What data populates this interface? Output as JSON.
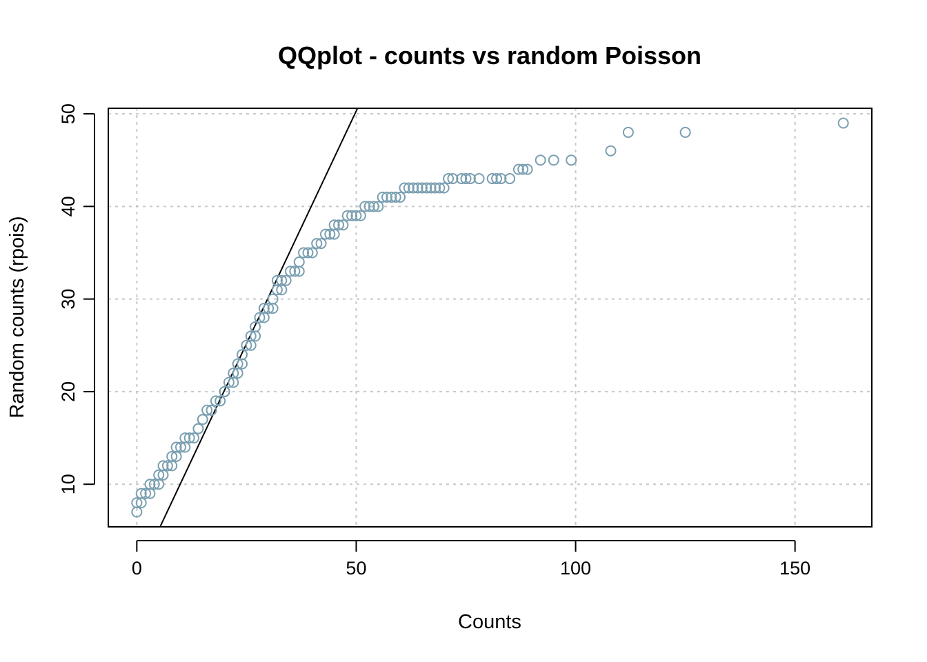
{
  "chart_data": {
    "type": "scatter",
    "title": "QQplot - counts vs random Poisson",
    "xlabel": "Counts",
    "ylabel": "Random counts (rpois)",
    "xlim": [
      -6.5,
      167.5
    ],
    "ylim": [
      5.4,
      50.6
    ],
    "x_ticks": [
      0,
      50,
      100,
      150
    ],
    "y_ticks": [
      10,
      20,
      30,
      40,
      50
    ],
    "grid": true,
    "point_color": "#7a9fb0",
    "reference_line": {
      "x": [
        5.3,
        50.3
      ],
      "y": [
        5.4,
        50.6
      ],
      "color": "#000000"
    },
    "x": [
      0,
      0,
      1,
      1,
      2,
      3,
      3,
      4,
      5,
      5,
      6,
      6,
      7,
      8,
      8,
      9,
      9,
      10,
      11,
      11,
      12,
      13,
      14,
      14,
      15,
      15,
      16,
      17,
      17,
      18,
      19,
      20,
      20,
      21,
      22,
      22,
      23,
      23,
      24,
      24,
      25,
      26,
      26,
      27,
      27,
      28,
      29,
      29,
      30,
      31,
      31,
      32,
      32,
      33,
      33,
      34,
      35,
      36,
      37,
      37,
      38,
      39,
      40,
      41,
      42,
      43,
      44,
      45,
      45,
      46,
      47,
      48,
      49,
      50,
      51,
      52,
      53,
      54,
      55,
      56,
      57,
      58,
      59,
      60,
      61,
      62,
      63,
      64,
      65,
      66,
      67,
      68,
      69,
      70,
      71,
      72,
      74,
      75,
      76,
      78,
      81,
      82,
      83,
      85,
      87,
      88,
      89,
      92,
      95,
      99,
      108,
      112,
      125,
      161
    ],
    "y": [
      7,
      8,
      8,
      9,
      9,
      9,
      10,
      10,
      10,
      11,
      11,
      12,
      12,
      12,
      13,
      13,
      14,
      14,
      14,
      15,
      15,
      15,
      16,
      16,
      17,
      17,
      18,
      18,
      18,
      19,
      19,
      20,
      20,
      21,
      21,
      22,
      22,
      23,
      23,
      24,
      25,
      25,
      26,
      26,
      27,
      28,
      28,
      29,
      29,
      29,
      30,
      31,
      32,
      31,
      32,
      32,
      33,
      33,
      33,
      34,
      35,
      35,
      35,
      36,
      36,
      37,
      37,
      37,
      38,
      38,
      38,
      39,
      39,
      39,
      39,
      40,
      40,
      40,
      40,
      41,
      41,
      41,
      41,
      41,
      42,
      42,
      42,
      42,
      42,
      42,
      42,
      42,
      42,
      42,
      43,
      43,
      43,
      43,
      43,
      43,
      43,
      43,
      43,
      43,
      44,
      44,
      44,
      45,
      45,
      45,
      46,
      48,
      48,
      49
    ]
  }
}
